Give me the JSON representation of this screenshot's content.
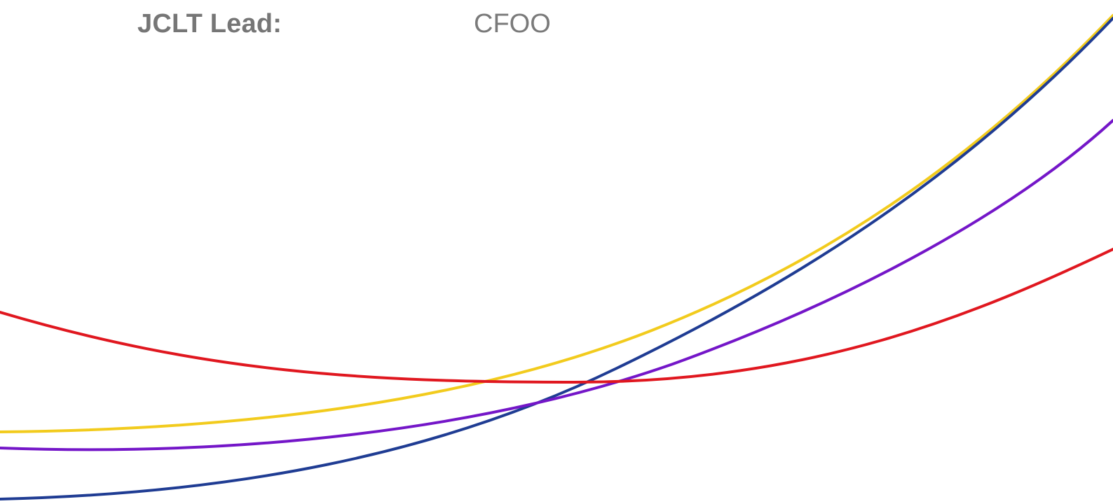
{
  "header": {
    "label": "JCLT Lead:",
    "value": "CFOO"
  },
  "decorative_curves": [
    {
      "name": "yellow-curve",
      "color": "#F2CB1D"
    },
    {
      "name": "blue-curve",
      "color": "#1F3C93"
    },
    {
      "name": "purple-curve",
      "color": "#7416C8"
    },
    {
      "name": "red-curve",
      "color": "#E0171F"
    }
  ]
}
